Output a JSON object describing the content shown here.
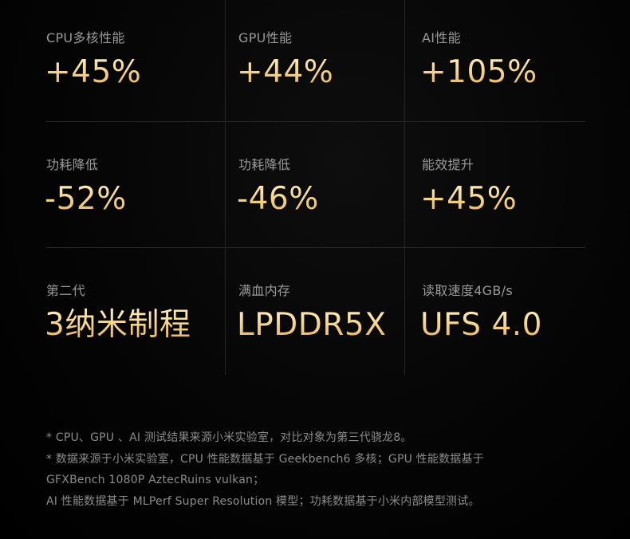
{
  "stats": [
    {
      "label": "CPU多核性能",
      "value": "+45%"
    },
    {
      "label": "GPU性能",
      "value": "+44%"
    },
    {
      "label": "AI性能",
      "value": "+105%"
    },
    {
      "label": "功耗降低",
      "value": "-52%"
    },
    {
      "label": "功耗降低",
      "value": "-46%"
    },
    {
      "label": "能效提升",
      "value": "+45%"
    },
    {
      "label": "第二代",
      "value": "3纳米制程"
    },
    {
      "label": "满血内存",
      "value": "LPDDR5X"
    },
    {
      "label": "读取速度4GB/s",
      "value": "UFS 4.0"
    }
  ],
  "footnotes": [
    "* CPU、GPU 、AI 测试结果来源小米实验室，对比对象为第三代骁龙8。",
    "* 数据来源于小米实验室，CPU 性能数据基于 Geekbench6 多核；GPU 性能数据基于",
    "GFXBench 1080P AztecRuins vulkan；",
    "AI 性能数据基于 MLPerf Super Resolution 模型；功耗数据基于小米内部模型测试。"
  ],
  "colors": {
    "background": "#000000",
    "label": "#9a9a9a",
    "value_gradient_top": "#fff1c8",
    "value_gradient_bottom": "#e2ad58",
    "divider": "#262626",
    "footnote": "#8c8c8c"
  }
}
